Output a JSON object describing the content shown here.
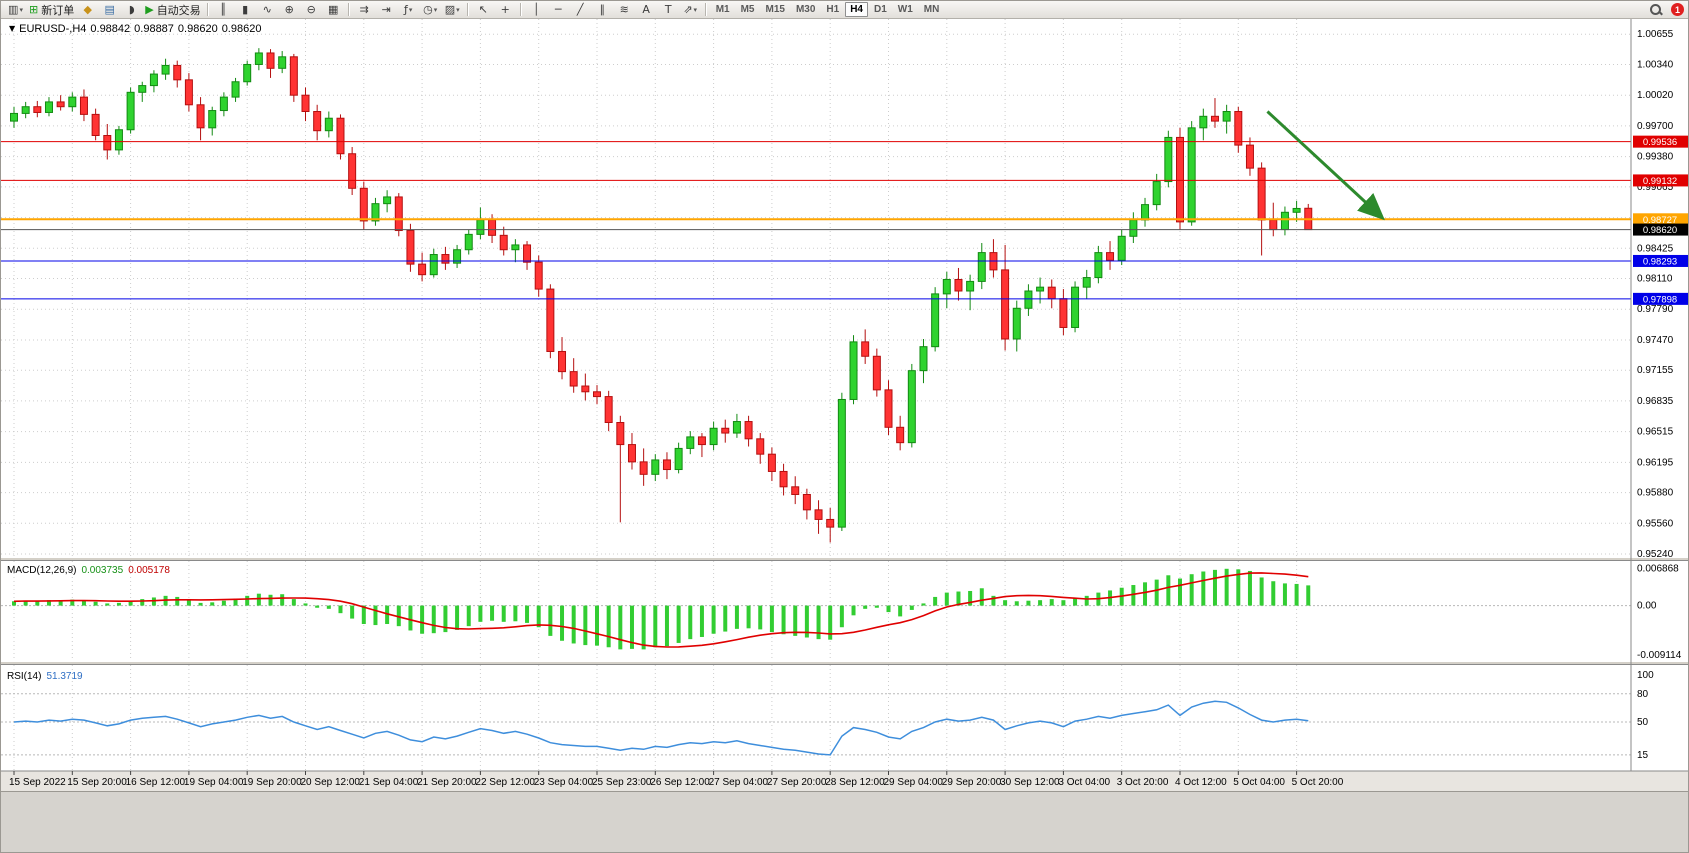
{
  "toolbar": {
    "new_order_label": "新订单",
    "autotrading_label": "自动交易",
    "timeframes": [
      "M1",
      "M5",
      "M15",
      "M30",
      "H1",
      "H4",
      "D1",
      "W1",
      "MN"
    ],
    "active_timeframe": "H4",
    "alert_badge": "1"
  },
  "icons": {
    "new_chart": "▥",
    "new_order_plus": "⊞",
    "mql": "◆",
    "profiles": "▤",
    "sound": "◗",
    "play": "▶",
    "bars": "║",
    "candles": "▮",
    "line": "∿",
    "zoom_in": "⊕",
    "zoom_out": "⊖",
    "tile": "▦",
    "autoscroll": "⇉",
    "shift": "⇥",
    "indicators": "ƒ",
    "periods": "◷",
    "templates": "▨",
    "cursor": "↖",
    "crosshair": "+",
    "vline": "│",
    "hline": "─",
    "trend": "╱",
    "channel": "∥",
    "fibo": "≋",
    "text": "A",
    "label": "T",
    "arrows": "⇗",
    "caret": "▾",
    "dropdown": "▼"
  },
  "chart": {
    "symbol_period": "EURUSD-,H4",
    "ohlc": {
      "open": "0.98842",
      "high": "0.98887",
      "low": "0.98620",
      "close": "0.98620"
    }
  },
  "chart_data": {
    "type": "candlestick",
    "symbol": "EURUSD-",
    "timeframe": "H4",
    "colors": {
      "up": "#2fd32f",
      "up_border": "#128a12",
      "down": "#ff3333",
      "down_border": "#b40f0f",
      "macd_hist": "#32cd32",
      "macd_signal": "#e00000",
      "rsi": "#3e8edc",
      "grid": "#cdcdcd",
      "current_line": "#555555",
      "current_tag": "#000000",
      "red_level": "#e00000",
      "orange_level": "#ffa500",
      "blue_level": "#0000e8",
      "arrow": "#2d8a2d"
    },
    "price_axis_labels": [
      "1.00655",
      "1.00340",
      "1.00020",
      "0.99700",
      "0.99380",
      "0.99065",
      "0.98745",
      "0.98425",
      "0.98110",
      "0.97790",
      "0.97470",
      "0.97155",
      "0.96835",
      "0.96515",
      "0.96195",
      "0.95880",
      "0.95560",
      "0.95240"
    ],
    "time_labels": [
      "15 Sep 2022",
      "15 Sep 20:00",
      "16 Sep 12:00",
      "19 Sep 04:00",
      "19 Sep 20:00",
      "20 Sep 12:00",
      "21 Sep 04:00",
      "21 Sep 20:00",
      "22 Sep 12:00",
      "23 Sep 04:00",
      "25 Sep 23:00",
      "26 Sep 12:00",
      "27 Sep 04:00",
      "27 Sep 20:00",
      "28 Sep 12:00",
      "29 Sep 04:00",
      "29 Sep 20:00",
      "30 Sep 12:00",
      "3 Oct 04:00",
      "3 Oct 20:00",
      "4 Oct 12:00",
      "5 Oct 04:00",
      "5 Oct 20:00"
    ],
    "label_step": 5,
    "hlines": [
      {
        "price": 0.99536,
        "color": "#e00000",
        "width": 1
      },
      {
        "price": 0.99132,
        "color": "#e00000",
        "width": 1
      },
      {
        "price": 0.98727,
        "color": "#ffa500",
        "width": 2
      },
      {
        "price": 0.98293,
        "color": "#0000e8",
        "width": 1
      },
      {
        "price": 0.97898,
        "color": "#0000e8",
        "width": 1
      }
    ],
    "current_price": 0.9862,
    "arrow": {
      "from_bar": 107.5,
      "from_price": 0.9985,
      "to_bar": 117.2,
      "to_price": 0.9876
    },
    "candles": [
      [
        0.9975,
        0.999,
        0.9968,
        0.9983
      ],
      [
        0.9983,
        0.9995,
        0.9978,
        0.999
      ],
      [
        0.999,
        0.9996,
        0.9979,
        0.9984
      ],
      [
        0.9984,
        1.0,
        0.998,
        0.9995
      ],
      [
        0.9995,
        1.0002,
        0.9986,
        0.999
      ],
      [
        0.999,
        1.0005,
        0.9985,
        1.0
      ],
      [
        1.0,
        1.0008,
        0.9975,
        0.9982
      ],
      [
        0.9982,
        0.9988,
        0.9955,
        0.996
      ],
      [
        0.996,
        0.9972,
        0.9935,
        0.9945
      ],
      [
        0.9945,
        0.997,
        0.994,
        0.9966
      ],
      [
        0.9966,
        1.001,
        0.9962,
        1.0005
      ],
      [
        1.0005,
        1.0016,
        0.9995,
        1.0012
      ],
      [
        1.0012,
        1.0028,
        1.0005,
        1.0024
      ],
      [
        1.0024,
        1.004,
        1.0018,
        1.0033
      ],
      [
        1.0033,
        1.0038,
        1.001,
        1.0018
      ],
      [
        1.0018,
        1.0025,
        0.9985,
        0.9992
      ],
      [
        0.9992,
        1.0,
        0.9955,
        0.9968
      ],
      [
        0.9968,
        0.999,
        0.996,
        0.9986
      ],
      [
        0.9986,
        1.0005,
        0.998,
        1.0
      ],
      [
        1.0,
        1.002,
        0.9995,
        1.0016
      ],
      [
        1.0016,
        1.0038,
        1.0012,
        1.0034
      ],
      [
        1.0034,
        1.0051,
        1.0028,
        1.0046
      ],
      [
        1.0046,
        1.005,
        1.002,
        1.003
      ],
      [
        1.003,
        1.0048,
        1.0025,
        1.0042
      ],
      [
        1.0042,
        1.0045,
        0.9995,
        1.0002
      ],
      [
        1.0002,
        1.001,
        0.9975,
        0.9985
      ],
      [
        0.9985,
        0.9992,
        0.9955,
        0.9965
      ],
      [
        0.9965,
        0.9985,
        0.9958,
        0.9978
      ],
      [
        0.9978,
        0.9982,
        0.9935,
        0.9941
      ],
      [
        0.9941,
        0.9948,
        0.9898,
        0.9905
      ],
      [
        0.9905,
        0.9912,
        0.9862,
        0.9871
      ],
      [
        0.9871,
        0.9895,
        0.9866,
        0.9889
      ],
      [
        0.9889,
        0.9903,
        0.988,
        0.9896
      ],
      [
        0.9896,
        0.99,
        0.9855,
        0.9861
      ],
      [
        0.9861,
        0.9868,
        0.9818,
        0.9826
      ],
      [
        0.9826,
        0.9838,
        0.9808,
        0.9815
      ],
      [
        0.9815,
        0.9842,
        0.9812,
        0.9836
      ],
      [
        0.9836,
        0.9844,
        0.982,
        0.9827
      ],
      [
        0.9827,
        0.9846,
        0.9822,
        0.9841
      ],
      [
        0.9841,
        0.9862,
        0.9836,
        0.9857
      ],
      [
        0.9857,
        0.9885,
        0.9852,
        0.9872
      ],
      [
        0.9872,
        0.9878,
        0.9848,
        0.9856
      ],
      [
        0.9856,
        0.9865,
        0.9835,
        0.9841
      ],
      [
        0.9841,
        0.9852,
        0.9828,
        0.9846
      ],
      [
        0.9846,
        0.985,
        0.982,
        0.9828
      ],
      [
        0.9828,
        0.9835,
        0.9792,
        0.98
      ],
      [
        0.98,
        0.9805,
        0.9728,
        0.9735
      ],
      [
        0.9735,
        0.975,
        0.9706,
        0.9714
      ],
      [
        0.9714,
        0.9728,
        0.9692,
        0.9699
      ],
      [
        0.9699,
        0.9712,
        0.9684,
        0.9693
      ],
      [
        0.9693,
        0.97,
        0.968,
        0.9688
      ],
      [
        0.9688,
        0.9694,
        0.9652,
        0.9661
      ],
      [
        0.9661,
        0.9668,
        0.9557,
        0.9638
      ],
      [
        0.9638,
        0.965,
        0.9612,
        0.962
      ],
      [
        0.962,
        0.9634,
        0.9595,
        0.9607
      ],
      [
        0.9607,
        0.9628,
        0.96,
        0.9622
      ],
      [
        0.9622,
        0.963,
        0.9602,
        0.9612
      ],
      [
        0.9612,
        0.964,
        0.9608,
        0.9634
      ],
      [
        0.9634,
        0.9652,
        0.9628,
        0.9646
      ],
      [
        0.9646,
        0.965,
        0.9625,
        0.9638
      ],
      [
        0.9638,
        0.9662,
        0.9632,
        0.9655
      ],
      [
        0.9655,
        0.9664,
        0.964,
        0.965
      ],
      [
        0.965,
        0.967,
        0.9645,
        0.9662
      ],
      [
        0.9662,
        0.9668,
        0.9636,
        0.9644
      ],
      [
        0.9644,
        0.965,
        0.9618,
        0.9628
      ],
      [
        0.9628,
        0.9635,
        0.96,
        0.961
      ],
      [
        0.961,
        0.9618,
        0.9585,
        0.9594
      ],
      [
        0.9594,
        0.9605,
        0.9576,
        0.9586
      ],
      [
        0.9586,
        0.9592,
        0.956,
        0.957
      ],
      [
        0.957,
        0.958,
        0.9545,
        0.956
      ],
      [
        0.956,
        0.9572,
        0.9536,
        0.9552
      ],
      [
        0.9552,
        0.9692,
        0.9548,
        0.9685
      ],
      [
        0.9685,
        0.9752,
        0.968,
        0.9745
      ],
      [
        0.9745,
        0.9758,
        0.9722,
        0.973
      ],
      [
        0.973,
        0.9738,
        0.9688,
        0.9695
      ],
      [
        0.9695,
        0.9705,
        0.9648,
        0.9656
      ],
      [
        0.9656,
        0.9668,
        0.9632,
        0.964
      ],
      [
        0.964,
        0.9722,
        0.9635,
        0.9715
      ],
      [
        0.9715,
        0.9748,
        0.9702,
        0.974
      ],
      [
        0.974,
        0.9802,
        0.9735,
        0.9795
      ],
      [
        0.9795,
        0.9818,
        0.978,
        0.981
      ],
      [
        0.981,
        0.9822,
        0.9788,
        0.9798
      ],
      [
        0.9798,
        0.9815,
        0.9778,
        0.9808
      ],
      [
        0.9808,
        0.9848,
        0.98,
        0.9838
      ],
      [
        0.9838,
        0.9852,
        0.9812,
        0.982
      ],
      [
        0.982,
        0.9846,
        0.9736,
        0.9748
      ],
      [
        0.9748,
        0.9788,
        0.9735,
        0.978
      ],
      [
        0.978,
        0.9805,
        0.9772,
        0.9798
      ],
      [
        0.9798,
        0.9812,
        0.9785,
        0.9802
      ],
      [
        0.9802,
        0.981,
        0.978,
        0.979
      ],
      [
        0.979,
        0.98,
        0.9752,
        0.976
      ],
      [
        0.976,
        0.9808,
        0.9755,
        0.9802
      ],
      [
        0.9802,
        0.982,
        0.979,
        0.9812
      ],
      [
        0.9812,
        0.9845,
        0.9806,
        0.9838
      ],
      [
        0.9838,
        0.985,
        0.982,
        0.983
      ],
      [
        0.983,
        0.9862,
        0.9825,
        0.9855
      ],
      [
        0.9855,
        0.988,
        0.9848,
        0.9872
      ],
      [
        0.9872,
        0.9895,
        0.9865,
        0.9888
      ],
      [
        0.9888,
        0.992,
        0.9882,
        0.9912
      ],
      [
        0.9912,
        0.9965,
        0.9906,
        0.9958
      ],
      [
        0.9958,
        0.9968,
        0.9862,
        0.987
      ],
      [
        0.987,
        0.9975,
        0.9866,
        0.9968
      ],
      [
        0.9968,
        0.9988,
        0.9955,
        0.998
      ],
      [
        0.998,
        0.9999,
        0.9968,
        0.9975
      ],
      [
        0.9975,
        0.9992,
        0.9962,
        0.9985
      ],
      [
        0.9985,
        0.999,
        0.9942,
        0.995
      ],
      [
        0.995,
        0.9958,
        0.9918,
        0.9926
      ],
      [
        0.9926,
        0.9932,
        0.9835,
        0.9872
      ],
      [
        0.9872,
        0.989,
        0.9855,
        0.9862
      ],
      [
        0.9862,
        0.9886,
        0.9856,
        0.988
      ],
      [
        0.988,
        0.9892,
        0.987,
        0.9884
      ],
      [
        0.98842,
        0.98887,
        0.9862,
        0.9862
      ]
    ],
    "macd": {
      "label": "MACD(12,26,9)",
      "value_main": "0.003735",
      "value_signal": "0.005178",
      "axis_labels": [
        "0.006868",
        "0.00",
        "-0.009114"
      ],
      "axis_values": [
        0.006868,
        0,
        -0.009114
      ],
      "histogram": [
        0.0008,
        0.0009,
        0.0008,
        0.001,
        0.0009,
        0.0011,
        0.001,
        0.0007,
        0.0004,
        0.0005,
        0.0009,
        0.0012,
        0.0015,
        0.0018,
        0.0016,
        0.001,
        0.0005,
        0.0006,
        0.0009,
        0.0013,
        0.0018,
        0.0022,
        0.002,
        0.0021,
        0.0012,
        0.0004,
        -0.0004,
        -0.0006,
        -0.0014,
        -0.0024,
        -0.0034,
        -0.0036,
        -0.0034,
        -0.0038,
        -0.0046,
        -0.0052,
        -0.0051,
        -0.0049,
        -0.0045,
        -0.0038,
        -0.003,
        -0.0028,
        -0.003,
        -0.0029,
        -0.0032,
        -0.004,
        -0.0056,
        -0.0065,
        -0.007,
        -0.0073,
        -0.0074,
        -0.0077,
        -0.0081,
        -0.008,
        -0.0081,
        -0.0077,
        -0.0075,
        -0.0069,
        -0.0062,
        -0.0058,
        -0.0052,
        -0.0048,
        -0.0043,
        -0.0042,
        -0.0044,
        -0.0049,
        -0.0053,
        -0.0056,
        -0.0059,
        -0.0062,
        -0.0063,
        -0.004,
        -0.0018,
        -0.0006,
        -0.0004,
        -0.0012,
        -0.002,
        -0.0008,
        0.0004,
        0.0016,
        0.0024,
        0.0026,
        0.0027,
        0.0032,
        0.0018,
        0.001,
        0.0008,
        0.0009,
        0.001,
        0.0012,
        0.001,
        0.0014,
        0.0018,
        0.0024,
        0.0028,
        0.0033,
        0.0038,
        0.0043,
        0.0048,
        0.0056,
        0.005,
        0.0058,
        0.0063,
        0.0066,
        0.0068,
        0.0067,
        0.0064,
        0.0052,
        0.0045,
        0.0041,
        0.004,
        0.003735
      ]
    },
    "rsi": {
      "label": "RSI(14)",
      "value": "51.3719",
      "axis_labels": [
        "100",
        "80",
        "50",
        "15"
      ],
      "axis_values": [
        100,
        80,
        50,
        15
      ],
      "levels": [
        80,
        50,
        15
      ],
      "series": [
        50,
        51,
        50,
        52,
        51,
        53,
        52,
        49,
        46,
        48,
        52,
        54,
        55,
        56,
        53,
        49,
        45,
        48,
        50,
        52,
        55,
        57,
        54,
        56,
        50,
        46,
        42,
        45,
        41,
        37,
        33,
        38,
        40,
        36,
        31,
        29,
        34,
        32,
        35,
        39,
        43,
        41,
        38,
        40,
        37,
        33,
        28,
        26,
        25,
        24,
        24,
        22,
        20,
        22,
        21,
        24,
        23,
        26,
        28,
        27,
        29,
        28,
        30,
        27,
        25,
        23,
        21,
        20,
        18,
        16,
        15,
        35,
        44,
        42,
        39,
        34,
        32,
        40,
        44,
        50,
        53,
        51,
        52,
        55,
        52,
        42,
        46,
        49,
        51,
        49,
        45,
        51,
        53,
        56,
        54,
        57,
        59,
        61,
        63,
        68,
        57,
        66,
        70,
        72,
        71,
        65,
        58,
        52,
        50,
        52,
        53,
        51.37
      ]
    }
  }
}
